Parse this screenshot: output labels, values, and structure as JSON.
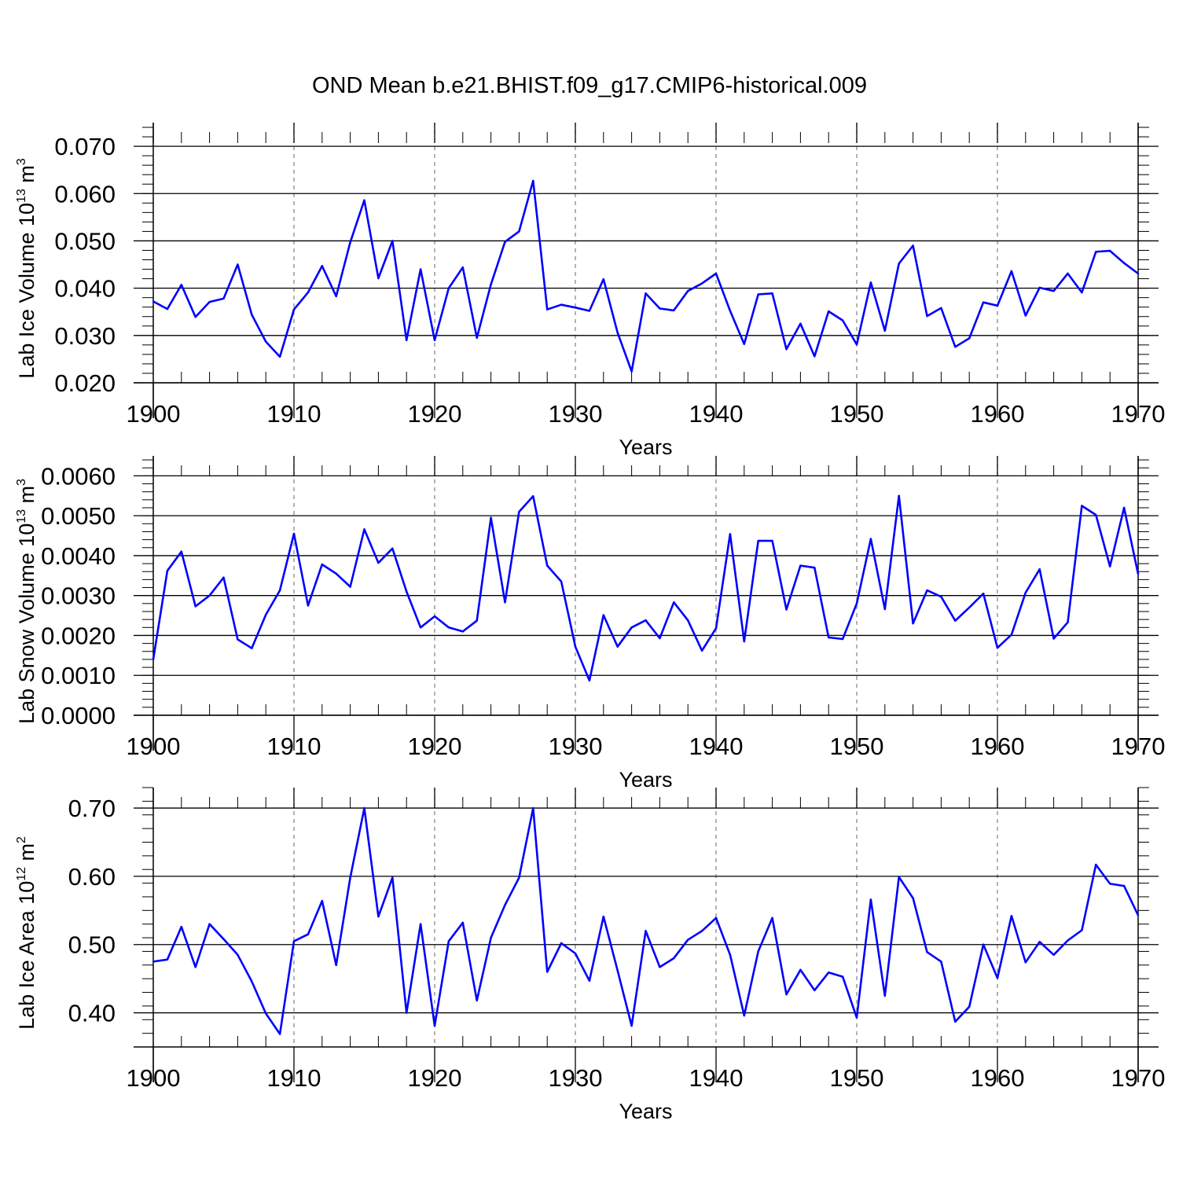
{
  "title": "OND Mean b.e21.BHIST.f09_g17.CMIP6-historical.009",
  "colors": {
    "line": "#0000ff",
    "axis": "#000000",
    "grid": "#808080"
  },
  "chart_data": [
    {
      "type": "line",
      "name": "ice-volume",
      "ylabel": "Lab Ice Volume 10",
      "ylabel_exp": "13",
      "ylabel_unit": "m",
      "ylabel_unit_exp": "3",
      "xlabel": "Years",
      "xlim": [
        1900,
        1970
      ],
      "ylim": [
        0.02,
        0.075
      ],
      "yticks": [
        0.02,
        0.03,
        0.04,
        0.05,
        0.06,
        0.07
      ],
      "ytick_labels": [
        "0.020",
        "0.030",
        "0.040",
        "0.050",
        "0.060",
        "0.070"
      ],
      "xticks": [
        1900,
        1910,
        1920,
        1930,
        1940,
        1950,
        1960,
        1970
      ],
      "xtick_labels": [
        "1900",
        "1910",
        "1920",
        "1930",
        "1940",
        "1950",
        "1960",
        "1970"
      ],
      "x": [
        1900,
        1901,
        1902,
        1903,
        1904,
        1905,
        1906,
        1907,
        1908,
        1909,
        1910,
        1911,
        1912,
        1913,
        1914,
        1915,
        1916,
        1917,
        1918,
        1919,
        1920,
        1921,
        1922,
        1923,
        1924,
        1925,
        1926,
        1927,
        1928,
        1929,
        1930,
        1931,
        1932,
        1933,
        1934,
        1935,
        1936,
        1937,
        1938,
        1939,
        1940,
        1941,
        1942,
        1943,
        1944,
        1945,
        1946,
        1947,
        1948,
        1949,
        1950,
        1951,
        1952,
        1953,
        1954,
        1955,
        1956,
        1957,
        1958,
        1959,
        1960,
        1961,
        1962,
        1963,
        1964,
        1965,
        1966,
        1967,
        1968,
        1969,
        1970
      ],
      "values": [
        0.0372,
        0.0356,
        0.0407,
        0.0339,
        0.0371,
        0.0378,
        0.045,
        0.0344,
        0.0287,
        0.0255,
        0.0355,
        0.0391,
        0.0447,
        0.0383,
        0.0497,
        0.0586,
        0.0421,
        0.05,
        0.029,
        0.044,
        0.029,
        0.04,
        0.0444,
        0.0295,
        0.0408,
        0.0498,
        0.052,
        0.0627,
        0.0355,
        0.0365,
        0.0359,
        0.0352,
        0.0419,
        0.0306,
        0.0224,
        0.0389,
        0.0357,
        0.0353,
        0.0394,
        0.041,
        0.0431,
        0.0352,
        0.0282,
        0.0387,
        0.0389,
        0.0271,
        0.0325,
        0.0256,
        0.0351,
        0.0332,
        0.0281,
        0.0412,
        0.031,
        0.0452,
        0.049,
        0.0341,
        0.0358,
        0.0276,
        0.0294,
        0.037,
        0.0363,
        0.0436,
        0.0342,
        0.0401,
        0.0394,
        0.0431,
        0.0391,
        0.0477,
        0.0479,
        0.0453,
        0.0431
      ]
    },
    {
      "type": "line",
      "name": "snow-volume",
      "ylabel": "Lab Snow Volume 10",
      "ylabel_exp": "13",
      "ylabel_unit": "m",
      "ylabel_unit_exp": "3",
      "xlabel": "Years",
      "xlim": [
        1900,
        1970
      ],
      "ylim": [
        0.0,
        0.0065
      ],
      "yticks": [
        0.0,
        0.001,
        0.002,
        0.003,
        0.004,
        0.005,
        0.006
      ],
      "ytick_labels": [
        "0.0000",
        "0.0010",
        "0.0020",
        "0.0030",
        "0.0040",
        "0.0050",
        "0.0060"
      ],
      "xticks": [
        1900,
        1910,
        1920,
        1930,
        1940,
        1950,
        1960,
        1970
      ],
      "xtick_labels": [
        "1900",
        "1910",
        "1920",
        "1930",
        "1940",
        "1950",
        "1960",
        "1970"
      ],
      "x": [
        1900,
        1901,
        1902,
        1903,
        1904,
        1905,
        1906,
        1907,
        1908,
        1909,
        1910,
        1911,
        1912,
        1913,
        1914,
        1915,
        1916,
        1917,
        1918,
        1919,
        1920,
        1921,
        1922,
        1923,
        1924,
        1925,
        1926,
        1927,
        1928,
        1929,
        1930,
        1931,
        1932,
        1933,
        1934,
        1935,
        1936,
        1937,
        1938,
        1939,
        1940,
        1941,
        1942,
        1943,
        1944,
        1945,
        1946,
        1947,
        1948,
        1949,
        1950,
        1951,
        1952,
        1953,
        1954,
        1955,
        1956,
        1957,
        1958,
        1959,
        1960,
        1961,
        1962,
        1963,
        1964,
        1965,
        1966,
        1967,
        1968,
        1969,
        1970
      ],
      "values": [
        0.0014,
        0.00362,
        0.0041,
        0.00273,
        0.003,
        0.00345,
        0.0019,
        0.00168,
        0.00252,
        0.00313,
        0.00455,
        0.00275,
        0.00378,
        0.00355,
        0.00322,
        0.00466,
        0.00382,
        0.00418,
        0.0031,
        0.0022,
        0.00248,
        0.0022,
        0.0021,
        0.00237,
        0.00495,
        0.00283,
        0.0051,
        0.00549,
        0.00375,
        0.00335,
        0.00172,
        0.00087,
        0.00251,
        0.00172,
        0.0022,
        0.00238,
        0.00193,
        0.00283,
        0.00238,
        0.00162,
        0.00218,
        0.00454,
        0.00185,
        0.00437,
        0.00437,
        0.00265,
        0.00375,
        0.0037,
        0.00195,
        0.00191,
        0.0028,
        0.00442,
        0.00266,
        0.0055,
        0.0023,
        0.00313,
        0.00297,
        0.00237,
        0.0027,
        0.00305,
        0.00169,
        0.00202,
        0.00307,
        0.00366,
        0.00192,
        0.00233,
        0.00525,
        0.00502,
        0.00373,
        0.0052,
        0.00354
      ]
    },
    {
      "type": "line",
      "name": "ice-area",
      "ylabel": "Lab Ice Area 10",
      "ylabel_exp": "12",
      "ylabel_unit": "m",
      "ylabel_unit_exp": "2",
      "xlabel": "Years",
      "xlim": [
        1900,
        1970
      ],
      "ylim": [
        0.35,
        0.73
      ],
      "yticks": [
        0.4,
        0.5,
        0.6,
        0.7
      ],
      "ytick_labels": [
        "0.40",
        "0.50",
        "0.60",
        "0.70"
      ],
      "xticks": [
        1900,
        1910,
        1920,
        1930,
        1940,
        1950,
        1960,
        1970
      ],
      "xtick_labels": [
        "1900",
        "1910",
        "1920",
        "1930",
        "1940",
        "1950",
        "1960",
        "1970"
      ],
      "x": [
        1900,
        1901,
        1902,
        1903,
        1904,
        1905,
        1906,
        1907,
        1908,
        1909,
        1910,
        1911,
        1912,
        1913,
        1914,
        1915,
        1916,
        1917,
        1918,
        1919,
        1920,
        1921,
        1922,
        1923,
        1924,
        1925,
        1926,
        1927,
        1928,
        1929,
        1930,
        1931,
        1932,
        1933,
        1934,
        1935,
        1936,
        1937,
        1938,
        1939,
        1940,
        1941,
        1942,
        1943,
        1944,
        1945,
        1946,
        1947,
        1948,
        1949,
        1950,
        1951,
        1952,
        1953,
        1954,
        1955,
        1956,
        1957,
        1958,
        1959,
        1960,
        1961,
        1962,
        1963,
        1964,
        1965,
        1966,
        1967,
        1968,
        1969,
        1970
      ],
      "values": [
        0.475,
        0.478,
        0.526,
        0.467,
        0.53,
        0.508,
        0.485,
        0.446,
        0.399,
        0.369,
        0.505,
        0.515,
        0.564,
        0.47,
        0.598,
        0.7,
        0.541,
        0.598,
        0.4,
        0.53,
        0.381,
        0.505,
        0.532,
        0.418,
        0.51,
        0.558,
        0.598,
        0.7,
        0.46,
        0.502,
        0.487,
        0.447,
        0.541,
        0.462,
        0.381,
        0.52,
        0.467,
        0.48,
        0.507,
        0.52,
        0.539,
        0.485,
        0.396,
        0.49,
        0.539,
        0.427,
        0.463,
        0.433,
        0.459,
        0.453,
        0.393,
        0.566,
        0.425,
        0.599,
        0.568,
        0.489,
        0.475,
        0.387,
        0.409,
        0.5,
        0.451,
        0.542,
        0.474,
        0.504,
        0.485,
        0.506,
        0.521,
        0.617,
        0.589,
        0.586,
        0.543
      ]
    }
  ]
}
